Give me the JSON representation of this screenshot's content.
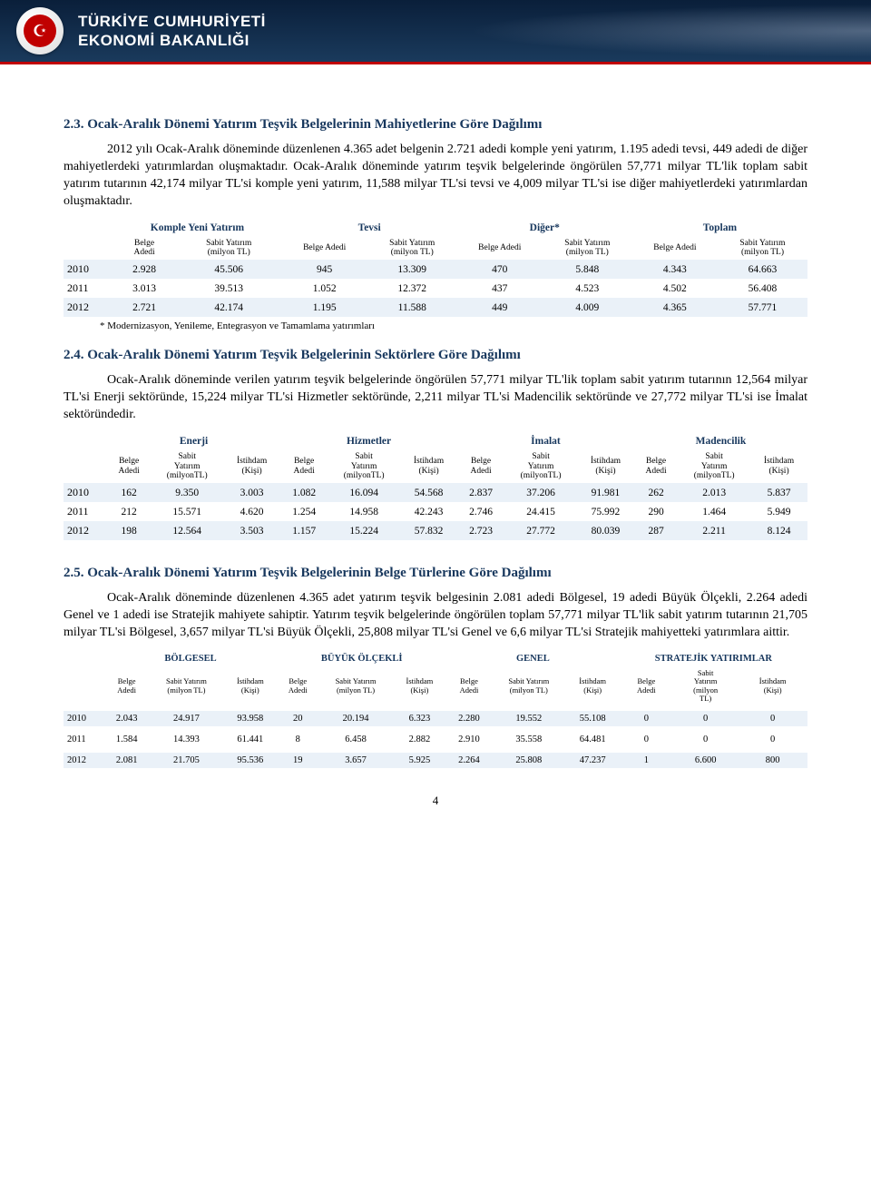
{
  "banner": {
    "line1": "TÜRKİYE CUMHURİYETİ",
    "line2": "EKONOMİ BAKANLIĞI",
    "emblem_glyph": "☪"
  },
  "section23": {
    "title": "2.3. Ocak-Aralık Dönemi Yatırım Teşvik Belgelerinin Mahiyetlerine Göre Dağılımı",
    "para": "2012 yılı Ocak-Aralık döneminde düzenlenen 4.365 adet belgenin 2.721 adedi komple yeni yatırım, 1.195 adedi tevsi, 449 adedi de diğer mahiyetlerdeki yatırımlardan oluşmaktadır. Ocak-Aralık döneminde yatırım teşvik belgelerinde öngörülen 57,771 milyar TL'lik toplam sabit yatırım tutarının 42,174 milyar TL'si komple yeni yatırım, 11,588 milyar TL'si tevsi ve 4,009 milyar TL'si ise diğer mahiyetlerdeki yatırımlardan oluşmaktadır."
  },
  "table1": {
    "groups": [
      "Komple Yeni Yatırım",
      "Tevsi",
      "Diğer*",
      "Toplam"
    ],
    "subcols": {
      "belge": "Belge\nAdedi",
      "sabit": "Sabit Yatırım\n(milyon TL)",
      "belge2": "Belge Adedi"
    },
    "rows": [
      {
        "year": "2010",
        "v": [
          "2.928",
          "45.506",
          "945",
          "13.309",
          "470",
          "5.848",
          "4.343",
          "64.663"
        ]
      },
      {
        "year": "2011",
        "v": [
          "3.013",
          "39.513",
          "1.052",
          "12.372",
          "437",
          "4.523",
          "4.502",
          "56.408"
        ]
      },
      {
        "year": "2012",
        "v": [
          "2.721",
          "42.174",
          "1.195",
          "11.588",
          "449",
          "4.009",
          "4.365",
          "57.771"
        ]
      }
    ],
    "footnote": "* Modernizasyon, Yenileme, Entegrasyon ve Tamamlama yatırımları"
  },
  "section24": {
    "title": "2.4. Ocak-Aralık Dönemi Yatırım Teşvik Belgelerinin Sektörlere Göre Dağılımı",
    "para": "Ocak-Aralık döneminde verilen yatırım teşvik belgelerinde öngörülen 57,771 milyar TL'lik toplam sabit yatırım tutarının 12,564 milyar TL'si Enerji sektöründe, 15,224 milyar TL'si Hizmetler sektöründe, 2,211 milyar TL'si Madencilik sektöründe ve 27,772 milyar TL'si ise İmalat sektöründedir."
  },
  "table2": {
    "groups": [
      "Enerji",
      "Hizmetler",
      "İmalat",
      "Madencilik"
    ],
    "subcols": {
      "belge": "Belge\nAdedi",
      "sabit": "Sabit\nYatırım\n(milyonTL)",
      "istih": "İstihdam\n(Kişi)"
    },
    "rows": [
      {
        "year": "2010",
        "v": [
          "162",
          "9.350",
          "3.003",
          "1.082",
          "16.094",
          "54.568",
          "2.837",
          "37.206",
          "91.981",
          "262",
          "2.013",
          "5.837"
        ]
      },
      {
        "year": "2011",
        "v": [
          "212",
          "15.571",
          "4.620",
          "1.254",
          "14.958",
          "42.243",
          "2.746",
          "24.415",
          "75.992",
          "290",
          "1.464",
          "5.949"
        ]
      },
      {
        "year": "2012",
        "v": [
          "198",
          "12.564",
          "3.503",
          "1.157",
          "15.224",
          "57.832",
          "2.723",
          "27.772",
          "80.039",
          "287",
          "2.211",
          "8.124"
        ]
      }
    ]
  },
  "section25": {
    "title": "2.5. Ocak-Aralık Dönemi Yatırım Teşvik Belgelerinin Belge Türlerine Göre Dağılımı",
    "para": "Ocak-Aralık döneminde düzenlenen 4.365 adet yatırım teşvik belgesinin 2.081 adedi Bölgesel, 19 adedi Büyük Ölçekli, 2.264 adedi Genel ve 1 adedi ise Stratejik mahiyete sahiptir. Yatırım teşvik belgelerinde öngörülen toplam 57,771 milyar TL'lik sabit yatırım tutarının 21,705 milyar TL'si Bölgesel, 3,657 milyar TL'si Büyük Ölçekli, 25,808 milyar TL'si Genel ve 6,6 milyar TL'si Stratejik mahiyetteki yatırımlara aittir."
  },
  "table3": {
    "groups": [
      "BÖLGESEL",
      "BÜYÜK ÖLÇEKLİ",
      "GENEL",
      "STRATEJİK YATIRIMLAR"
    ],
    "subcols": {
      "belge": "Belge\nAdedi",
      "sabit": "Sabit Yatırım\n(milyon TL)",
      "sabit4": "Sabit\nYatırım\n(milyon\nTL)",
      "istih": "İstihdam\n(Kişi)"
    },
    "rows": [
      {
        "year": "2010",
        "v": [
          "2.043",
          "24.917",
          "93.958",
          "20",
          "20.194",
          "6.323",
          "2.280",
          "19.552",
          "55.108",
          "0",
          "0",
          "0"
        ]
      },
      {
        "year": "2011",
        "v": [
          "1.584",
          "14.393",
          "61.441",
          "8",
          "6.458",
          "2.882",
          "2.910",
          "35.558",
          "64.481",
          "0",
          "0",
          "0"
        ]
      },
      {
        "year": "2012",
        "v": [
          "2.081",
          "21.705",
          "95.536",
          "19",
          "3.657",
          "5.925",
          "2.264",
          "25.808",
          "47.237",
          "1",
          "6.600",
          "800"
        ]
      }
    ]
  },
  "page_number": "4",
  "colors": {
    "title": "#16365c",
    "stripe": "#eaf1f8",
    "banner_border": "#c00000"
  }
}
